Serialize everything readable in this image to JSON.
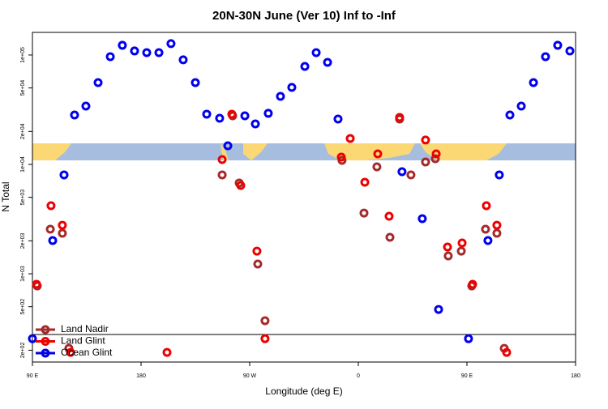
{
  "chart_data": {
    "type": "scatter",
    "title": "20N-30N June (Ver 10)   Inf to -Inf",
    "x_label": "Longitude (deg E)",
    "y_label": "N Total",
    "log_y": true,
    "legend": "lower left",
    "xlim": [
      90,
      540
    ],
    "ylim": [
      156,
      161000
    ],
    "xticks": [
      {
        "value": 90,
        "label": "90 E"
      },
      180,
      {
        "value": 270,
        "label": "90 W"
      },
      {
        "value": 360,
        "label": "0"
      },
      {
        "value": 450,
        "label": "90 E"
      },
      {
        "value": 540,
        "label": "180"
      }
    ],
    "yticks": [
      {
        "value": 200,
        "label": "2e+02"
      },
      {
        "value": 500,
        "label": "5e+02"
      },
      {
        "value": 1000,
        "label": "1e+03"
      },
      {
        "value": 2000,
        "label": "2e+03"
      },
      {
        "value": 5000,
        "label": "5e+03"
      },
      {
        "value": 10000,
        "label": "1e+04"
      },
      {
        "value": 20000,
        "label": "2e+04"
      },
      {
        "value": 50000,
        "label": "5e+04"
      },
      {
        "value": 100000,
        "label": "1e+05"
      }
    ],
    "series": [
      {
        "name": "Land Nadir",
        "color": "#a52a2a",
        "x": [
          94.0,
          104.8,
          114.8,
          120.2,
          247.2,
          255.9,
          261.3,
          276.7,
          282.7,
          346.5,
          364.7,
          375.4,
          386.2,
          394.2,
          403.6,
          415.7,
          423.8,
          434.5,
          445.3,
          454.0,
          465.4,
          474.8,
          480.9
        ],
        "values": [
          774,
          2556,
          2346,
          208,
          8017,
          27800,
          6760,
          1227,
          372,
          10890,
          3590,
          9500,
          2154,
          26000,
          8017,
          10520,
          11270,
          1455,
          1611,
          774,
          2556,
          2346,
          208
        ]
      },
      {
        "name": "Land Glint",
        "color": "#ee0000",
        "x": [
          93.4,
          105.4,
          114.8,
          121.6,
          201.5,
          247.2,
          255.2,
          262.6,
          276.0,
          282.7,
          345.9,
          353.3,
          365.4,
          376.1,
          385.5,
          394.2,
          415.7,
          424.5,
          433.9,
          446.0,
          454.7,
          466.1,
          474.8,
          482.9
        ],
        "values": [
          802,
          4190,
          2780,
          191,
          191,
          11070,
          28800,
          6420,
          1611,
          255,
          11660,
          17260,
          6870,
          12480,
          3357,
          26900,
          16700,
          12480,
          1756,
          1911,
          802,
          4190,
          2780,
          191
        ]
      },
      {
        "name": "Ocean Glint",
        "color": "#0000ee",
        "x": [
          90,
          106.8,
          116.2,
          124.9,
          134.3,
          144.4,
          154.5,
          164.5,
          174.6,
          184.7,
          194.8,
          204.8,
          214.9,
          225.0,
          234.4,
          245.1,
          251.9,
          266.0,
          274.7,
          285.4,
          295.5,
          304.9,
          315.7,
          325.1,
          334.5,
          343.2,
          396.2,
          413.0,
          426.5,
          451.3,
          467.4,
          476.8,
          485.6,
          495.0,
          505.1,
          515.1,
          525.2,
          535.3
        ],
        "values": [
          255,
          2013,
          8017,
          28300,
          34130,
          55980,
          96610,
          122700,
          108900,
          105200,
          105200,
          127000,
          90300,
          55980,
          28800,
          26430,
          14800,
          27800,
          23450,
          29300,
          41900,
          50570,
          78700,
          105200,
          85700,
          26000,
          8580,
          3190,
          472,
          255,
          2013,
          8017,
          28300,
          34130,
          55980,
          96610,
          122700,
          108900
        ]
      }
    ]
  }
}
